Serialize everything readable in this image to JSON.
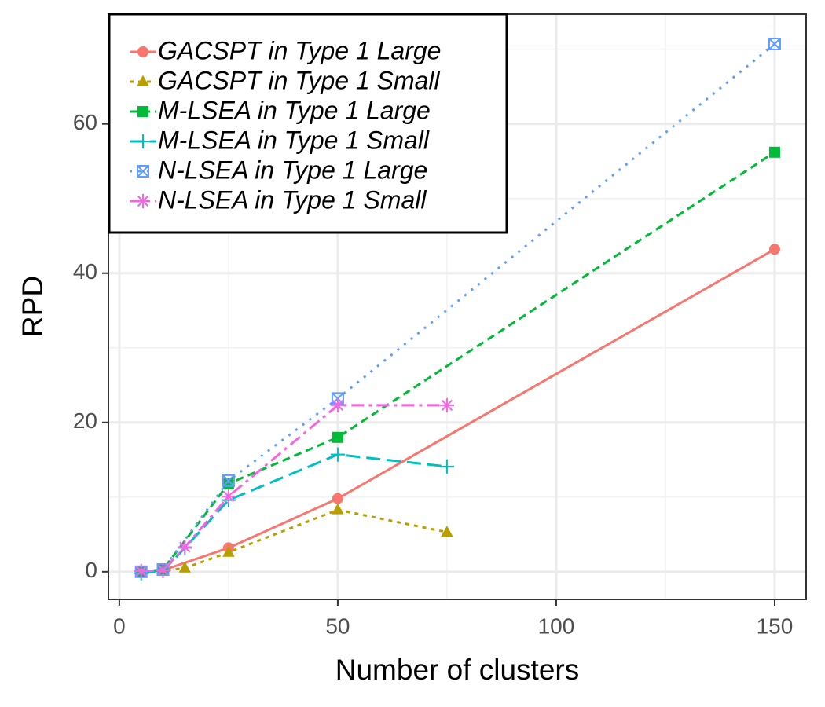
{
  "chart_data": {
    "type": "line",
    "x_label": "Number of clusters",
    "y_label": "RPD",
    "xlim": [
      -2.5,
      157.2
    ],
    "ylim": [
      -3.7,
      74.7
    ],
    "xticks": [
      0,
      50,
      100,
      150
    ],
    "yticks": [
      0,
      20,
      40,
      60
    ],
    "grid": true,
    "legend": "top-left",
    "series": [
      {
        "name": "GACSPT in Type 1 Large",
        "color": "#F8766D",
        "linestyle": "solid",
        "marker": "circle",
        "x": [
          5,
          10,
          25,
          50,
          150
        ],
        "values": [
          0,
          0.2,
          3.2,
          9.8,
          43.2
        ]
      },
      {
        "name": "GACSPT in Type 1 Small",
        "color": "#B79F00",
        "linestyle": "dotted",
        "marker": "triangle",
        "x": [
          5,
          10,
          15,
          25,
          50,
          75
        ],
        "values": [
          0,
          0.1,
          0.5,
          2.6,
          8.3,
          5.3
        ]
      },
      {
        "name": "M-LSEA in Type 1 Large",
        "color": "#00BA38",
        "linestyle": "dashed",
        "marker": "square",
        "x": [
          5,
          10,
          25,
          50,
          150
        ],
        "values": [
          0,
          0.3,
          11.8,
          18,
          56.2
        ]
      },
      {
        "name": "M-LSEA in Type 1 Small",
        "color": "#00BFC4",
        "linestyle": "longdash",
        "marker": "plus",
        "x": [
          5,
          10,
          15,
          25,
          50,
          75
        ],
        "values": [
          -0.2,
          0.1,
          3.2,
          9.6,
          15.7,
          14.1
        ]
      },
      {
        "name": "N-LSEA in Type 1 Large",
        "color": "#619CFF",
        "linestyle": "finedot",
        "marker": "square-cross",
        "x": [
          5,
          10,
          25,
          50,
          150
        ],
        "values": [
          0,
          0.3,
          12.2,
          23.2,
          70.7
        ]
      },
      {
        "name": "N-LSEA in Type 1 Small",
        "color": "#F564E3",
        "linestyle": "dotdash",
        "marker": "asterisk",
        "x": [
          5,
          10,
          15,
          25,
          50,
          75
        ],
        "values": [
          0.1,
          0.2,
          3.3,
          10.1,
          22.3,
          22.3
        ]
      }
    ]
  }
}
